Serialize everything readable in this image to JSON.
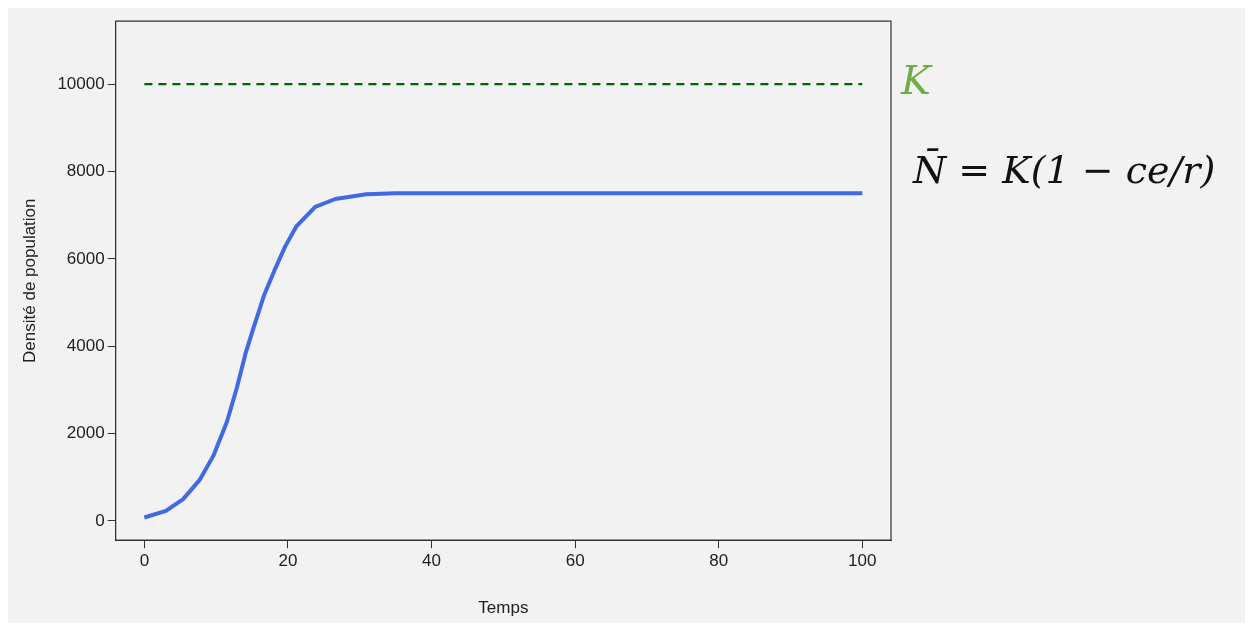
{
  "chart_data": {
    "type": "line",
    "xlabel": "Temps",
    "ylabel": "Densité de population",
    "x": [
      0,
      3,
      5.4,
      7.7,
      9.6,
      11.5,
      12.9,
      14.1,
      15.3,
      16.7,
      18.1,
      19.6,
      21.2,
      23.8,
      26.6,
      30.9,
      35,
      40,
      50,
      60,
      70,
      80,
      90,
      100
    ],
    "series": [
      {
        "color": "#4169e1",
        "values": [
          80,
          230,
          500,
          940,
          1490,
          2270,
          3060,
          3840,
          4470,
          5180,
          5730,
          6280,
          6750,
          7190,
          7370,
          7480,
          7500,
          7500,
          7500,
          7500,
          7500,
          7500,
          7500,
          7500
        ]
      }
    ],
    "xlim": [
      -4,
      104
    ],
    "xticks": [
      0,
      20,
      40,
      60,
      80,
      100
    ],
    "ylim": [
      -440,
      11440
    ],
    "yticks": [
      0,
      2000,
      4000,
      6000,
      8000,
      10000
    ],
    "ref_lines": [
      {
        "axis": "y",
        "value": 10000,
        "label": "K",
        "color": "#006400",
        "line_style": "dashed"
      }
    ],
    "annotations": [
      "N̄ = K(1 − ce/r)"
    ],
    "grid": false,
    "legend": false,
    "marker": "none",
    "line_style": "solid"
  }
}
